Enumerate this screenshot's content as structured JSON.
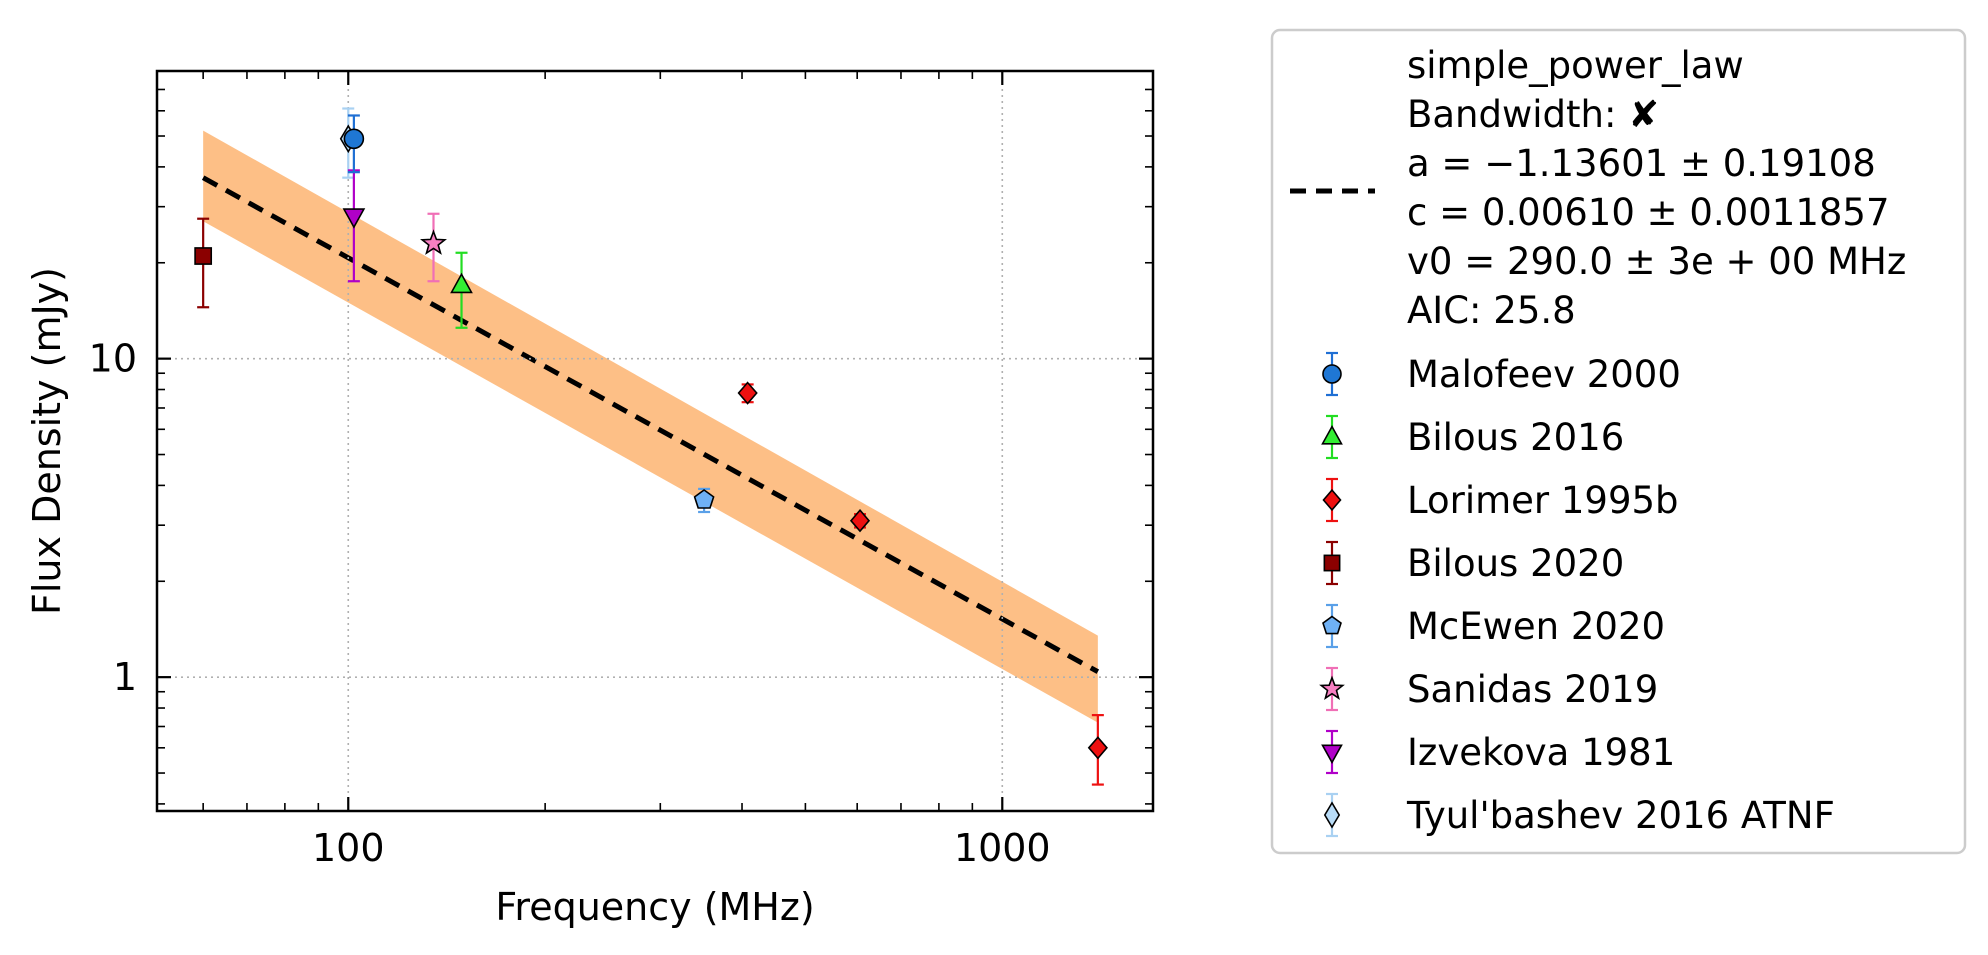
{
  "chart_data": {
    "type": "scatter",
    "xlabel": "Frequency (MHz)",
    "ylabel": "Flux Density (mJy)",
    "xscale": "log",
    "yscale": "log",
    "xlim": [
      51,
      1700
    ],
    "ylim": [
      0.38,
      80
    ],
    "xticks": [
      {
        "value": 100,
        "label": "100"
      },
      {
        "value": 1000,
        "label": "1000"
      }
    ],
    "yticks": [
      {
        "value": 1,
        "label": "1"
      },
      {
        "value": 10,
        "label": "10"
      }
    ],
    "grid": true,
    "legend_position": "outside-right",
    "fit": {
      "name": "simple_power_law",
      "bandwidth_label": "Bandwidth: ✘",
      "params": [
        "a = −1.13601 ± 0.19108",
        "c = 0.00610 ± 0.0011857",
        "v0 = 290.0 ± 3e + 00 MHz"
      ],
      "aic_label": "AIC: 25.8",
      "line_color": "#000000",
      "band_color": "#fdbf86",
      "line": [
        {
          "x": 60,
          "y": 37.0
        },
        {
          "x": 1400,
          "y": 1.04
        }
      ],
      "band_upper": [
        {
          "x": 60,
          "y": 52.0
        },
        {
          "x": 1400,
          "y": 1.35
        }
      ],
      "band_lower": [
        {
          "x": 60,
          "y": 27.0
        },
        {
          "x": 1400,
          "y": 0.72
        }
      ]
    },
    "series": [
      {
        "name": "Malofeev 2000",
        "marker": "circle",
        "color": "#1f77d4",
        "errcolor": "#1f6fd4",
        "points": [
          {
            "x": 102,
            "y": 49.0,
            "ylo": 38.5,
            "yhi": 58.0
          }
        ]
      },
      {
        "name": "Bilous 2016",
        "marker": "triangle-up",
        "color": "#33ee33",
        "errcolor": "#22dd22",
        "points": [
          {
            "x": 149,
            "y": 17.0,
            "ylo": 12.5,
            "yhi": 21.5
          }
        ]
      },
      {
        "name": "Lorimer 1995b",
        "marker": "diamond",
        "color": "#ee1111",
        "errcolor": "#ee1111",
        "points": [
          {
            "x": 408,
            "y": 7.8,
            "ylo": 7.3,
            "yhi": 8.3
          },
          {
            "x": 606,
            "y": 3.1,
            "ylo": 2.95,
            "yhi": 3.25
          },
          {
            "x": 1400,
            "y": 0.6,
            "ylo": 0.46,
            "yhi": 0.76
          }
        ]
      },
      {
        "name": "Bilous 2020",
        "marker": "square",
        "color": "#8b0000",
        "errcolor": "#8b0000",
        "points": [
          {
            "x": 60,
            "y": 21.0,
            "ylo": 14.5,
            "yhi": 27.5
          }
        ]
      },
      {
        "name": "McEwen 2020",
        "marker": "pentagon",
        "color": "#6fb1f5",
        "errcolor": "#5aa0e8",
        "points": [
          {
            "x": 350,
            "y": 3.6,
            "ylo": 3.3,
            "yhi": 3.9
          }
        ]
      },
      {
        "name": "Sanidas 2019",
        "marker": "star",
        "color": "#f77fc2",
        "errcolor": "#f06fb6",
        "points": [
          {
            "x": 135,
            "y": 23.0,
            "ylo": 17.5,
            "yhi": 28.5
          }
        ]
      },
      {
        "name": "Izvekova 1981",
        "marker": "triangle-down",
        "color": "#b000c8",
        "errcolor": "#b000c8",
        "points": [
          {
            "x": 102,
            "y": 28.0,
            "ylo": 17.5,
            "yhi": 39.0
          }
        ]
      },
      {
        "name": "Tyul'bashev 2016 ATNF",
        "marker": "thin-diamond",
        "color": "#b9dcf7",
        "errcolor": "#a9d1f2",
        "points": [
          {
            "x": 100,
            "y": 49.0,
            "ylo": 37.0,
            "yhi": 61.0
          }
        ]
      }
    ]
  }
}
